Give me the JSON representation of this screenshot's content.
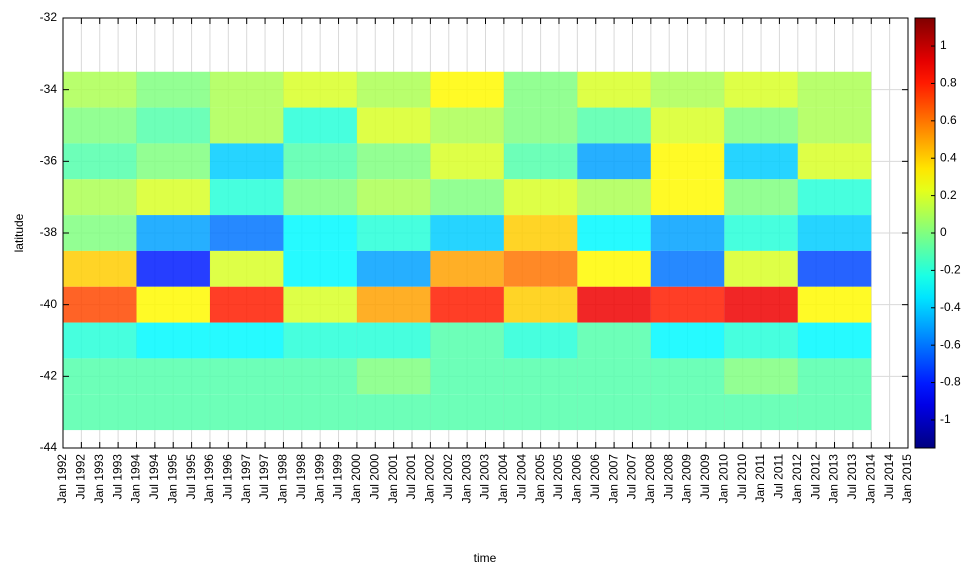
{
  "chart_data": {
    "type": "contour",
    "x_label": "time",
    "y_label": "latitude",
    "xlim": [
      "Jan 1992",
      "Jan 2015"
    ],
    "xticks": [
      "Jan 1992",
      "Jul 1992",
      "Jan 1993",
      "Jul 1993",
      "Jan 1994",
      "Jul 1994",
      "Jan 1995",
      "Jul 1995",
      "Jan 1996",
      "Jul 1996",
      "Jan 1997",
      "Jul 1997",
      "Jan 1998",
      "Jul 1998",
      "Jan 1999",
      "Jul 1999",
      "Jan 2000",
      "Jul 2000",
      "Jan 2001",
      "Jul 2001",
      "Jan 2002",
      "Jul 2002",
      "Jan 2003",
      "Jul 2003",
      "Jan 2004",
      "Jul 2004",
      "Jan 2005",
      "Jul 2005",
      "Jan 2006",
      "Jul 2006",
      "Jan 2007",
      "Jul 2007",
      "Jan 2008",
      "Jul 2008",
      "Jan 2009",
      "Jul 2009",
      "Jan 2010",
      "Jul 2010",
      "Jan 2011",
      "Jul 2011",
      "Jan 2012",
      "Jul 2012",
      "Jan 2013",
      "Jul 2013",
      "Jan 2014",
      "Jul 2014",
      "Jan 2015"
    ],
    "ylim": [
      -44,
      -32
    ],
    "yticks": [
      -44,
      -42,
      -40,
      -38,
      -36,
      -34,
      -32
    ],
    "grid": true,
    "x": [
      "Jan 1993",
      "Jan 1995",
      "Jan 1997",
      "Jan 1999",
      "Jan 2001",
      "Jan 2003",
      "Jan 2005",
      "Jan 2007",
      "Jan 2009",
      "Jan 2011",
      "Jan 2013"
    ],
    "y": [
      -34,
      -35,
      -36,
      -37,
      -38,
      -39,
      -40,
      -41,
      -42,
      -43
    ],
    "z": [
      [
        0.1,
        0.0,
        0.1,
        0.2,
        0.1,
        0.3,
        0.0,
        0.2,
        0.1,
        0.2,
        0.1
      ],
      [
        0.0,
        -0.1,
        0.1,
        -0.2,
        0.2,
        0.1,
        0.0,
        -0.1,
        0.2,
        0.0,
        0.1
      ],
      [
        -0.1,
        0.0,
        -0.4,
        -0.1,
        0.0,
        0.2,
        -0.1,
        -0.5,
        0.3,
        -0.4,
        0.2
      ],
      [
        0.1,
        0.2,
        -0.2,
        0.0,
        0.1,
        0.0,
        0.2,
        0.1,
        0.3,
        0.0,
        -0.2
      ],
      [
        0.0,
        -0.5,
        -0.6,
        -0.3,
        -0.2,
        -0.4,
        0.4,
        -0.3,
        -0.5,
        -0.2,
        -0.4
      ],
      [
        0.4,
        -0.8,
        0.2,
        -0.3,
        -0.5,
        0.5,
        0.6,
        0.3,
        -0.6,
        0.2,
        -0.7
      ],
      [
        0.7,
        0.3,
        0.8,
        0.2,
        0.5,
        0.8,
        0.4,
        0.9,
        0.8,
        0.9,
        0.3
      ],
      [
        -0.2,
        -0.3,
        -0.3,
        -0.2,
        -0.2,
        -0.1,
        -0.2,
        -0.1,
        -0.3,
        -0.2,
        -0.3
      ],
      [
        -0.1,
        -0.1,
        -0.1,
        -0.1,
        0.0,
        -0.1,
        -0.1,
        -0.1,
        -0.1,
        0.0,
        -0.1
      ],
      [
        -0.1,
        -0.1,
        -0.1,
        -0.1,
        -0.1,
        -0.1,
        -0.1,
        -0.1,
        -0.1,
        -0.1,
        -0.1
      ]
    ],
    "clim": [
      -1.15,
      1.15
    ],
    "cticks": [
      -1,
      -0.8,
      -0.6,
      -0.4,
      -0.2,
      0,
      0.2,
      0.4,
      0.6,
      0.8,
      1
    ]
  }
}
